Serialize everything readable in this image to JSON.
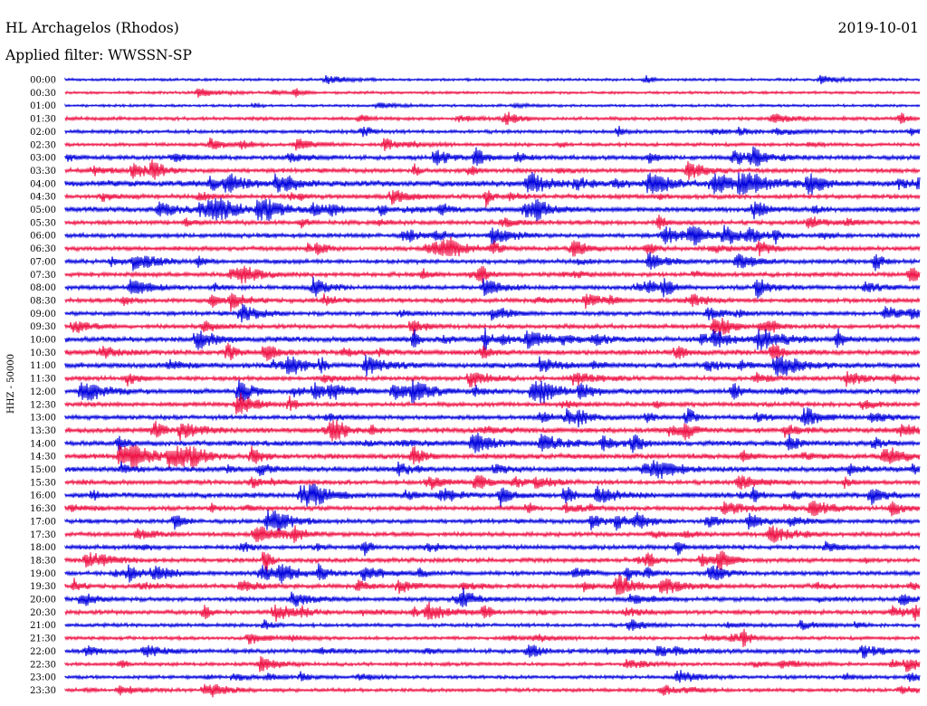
{
  "header": {
    "station": "HL Archagelos (Rhodos)",
    "date": "2019-10-01",
    "filter": "Applied filter: WWSSN-SP"
  },
  "chart_data": {
    "type": "line",
    "subtype": "helicorder",
    "ylabel": "HHZ - 50000",
    "row_labels": [
      "00:00",
      "00:30",
      "01:00",
      "01:30",
      "02:00",
      "02:30",
      "03:00",
      "03:30",
      "04:00",
      "04:30",
      "05:00",
      "05:30",
      "06:00",
      "06:30",
      "07:00",
      "07:30",
      "08:00",
      "08:30",
      "09:00",
      "09:30",
      "10:00",
      "10:30",
      "11:00",
      "11:30",
      "12:00",
      "12:30",
      "13:00",
      "13:30",
      "14:00",
      "14:30",
      "15:00",
      "15:30",
      "16:00",
      "16:30",
      "17:00",
      "17:30",
      "18:00",
      "18:30",
      "19:00",
      "19:30",
      "20:00",
      "20:30",
      "21:00",
      "21:30",
      "22:00",
      "22:30",
      "23:00",
      "23:30"
    ],
    "colors": [
      "#0000dd",
      "#ee1144"
    ],
    "activity": [
      1,
      1,
      1,
      2,
      2,
      2,
      3,
      3,
      5,
      3,
      4,
      3,
      3,
      3,
      3,
      3,
      3,
      3,
      3,
      3,
      4,
      4,
      4,
      3,
      4,
      3,
      3,
      4,
      4,
      4,
      4,
      3,
      4,
      3,
      3,
      3,
      3,
      3,
      3,
      3,
      3,
      3,
      2,
      2,
      3,
      2,
      2,
      2
    ]
  }
}
